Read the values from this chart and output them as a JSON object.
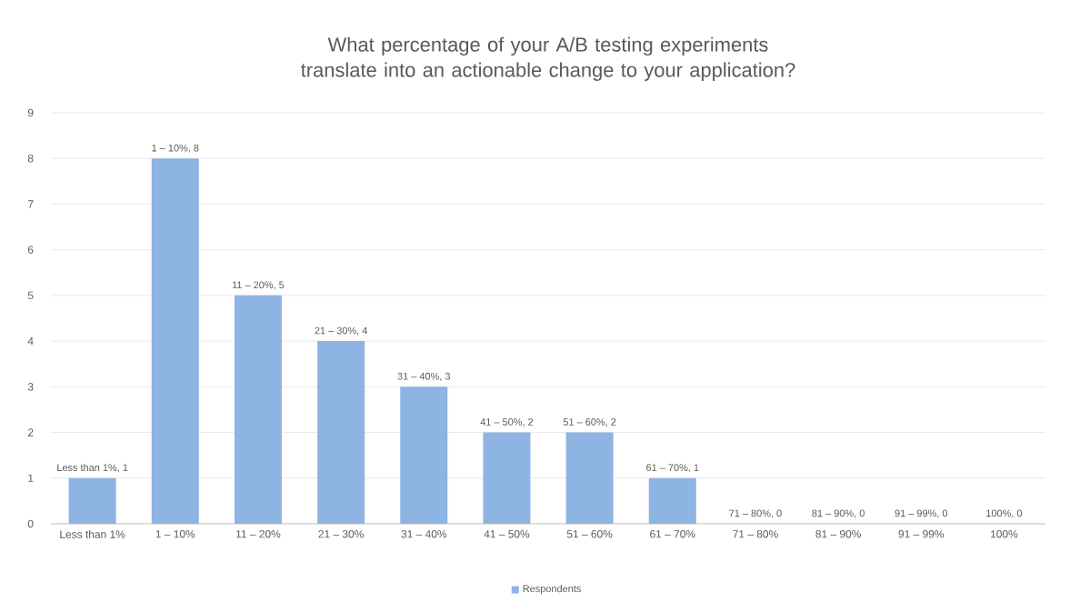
{
  "chart_data": {
    "type": "bar",
    "title": "What percentage of your A/B testing experiments translate into an actionable change to your application?",
    "categories": [
      "Less than 1%",
      "1 – 10%",
      "11 – 20%",
      "21 – 30%",
      "31 – 40%",
      "41 – 50%",
      "51 – 60%",
      "61 – 70%",
      "71 – 80%",
      "81 – 90%",
      "91 – 99%",
      "100%"
    ],
    "series": [
      {
        "name": "Respondents",
        "color": "#8db4e2",
        "values": [
          1,
          8,
          5,
          4,
          3,
          2,
          2,
          1,
          0,
          0,
          0,
          0
        ],
        "value_labels": [
          "Less than 1%, 1",
          "1 – 10%, 8",
          "11 – 20%, 5",
          "21 – 30%, 4",
          "31 – 40%, 3",
          "41 – 50%, 2",
          "51 – 60%, 2",
          "61 – 70%, 1",
          "71 – 80%, 0",
          "81 – 90%, 0",
          "91 – 99%, 0",
          "100%, 0"
        ]
      }
    ],
    "ylim": [
      0,
      9
    ],
    "yticks": [
      0,
      1,
      2,
      3,
      4,
      5,
      6,
      7,
      8,
      9
    ],
    "grid": "y",
    "legend": "bottom"
  }
}
